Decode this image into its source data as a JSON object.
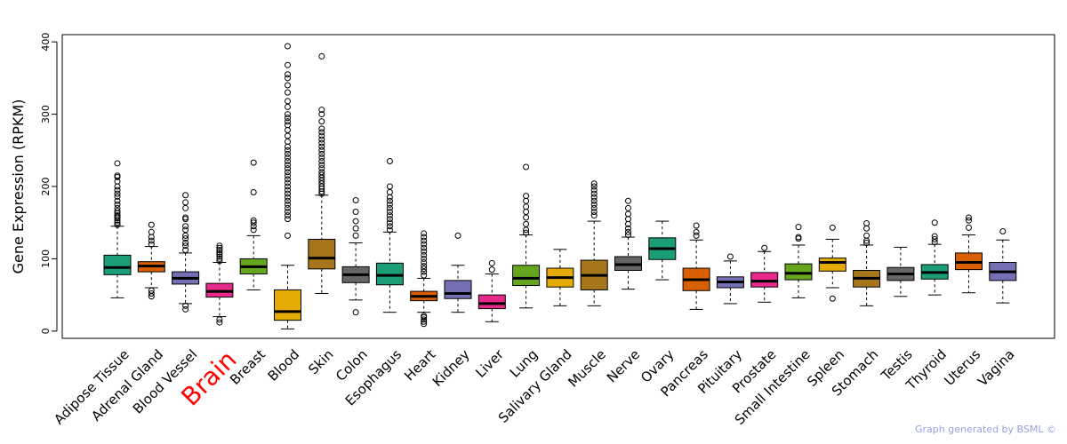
{
  "chart_data": {
    "type": "box",
    "ylabel": "Gene Expression (RPKM)",
    "xlabel": "",
    "ylim": [
      -10,
      410
    ],
    "yticks": [
      0,
      100,
      200,
      300,
      400
    ],
    "highlight_category": "Brain",
    "highlight_color": "#ff0000",
    "credit": "Graph generated by BSML ©",
    "series": [
      {
        "name": "Adipose Tissue",
        "color": "#1b9e77",
        "whisker_low": 46,
        "q1": 78,
        "median": 88,
        "q3": 105,
        "whisker_high": 145,
        "outliers": [
          147,
          150,
          153,
          156,
          158,
          160,
          163,
          166,
          170,
          175,
          180,
          186,
          190,
          195,
          200,
          207,
          213,
          215,
          232
        ]
      },
      {
        "name": "Adrenal Gland",
        "color": "#d95f02",
        "whisker_low": 60,
        "q1": 82,
        "median": 90,
        "q3": 96,
        "whisker_high": 117,
        "outliers": [
          48,
          52,
          56,
          120,
          125,
          130,
          137,
          147
        ]
      },
      {
        "name": "Blood Vessel",
        "color": "#7570b3",
        "whisker_low": 38,
        "q1": 65,
        "median": 73,
        "q3": 82,
        "whisker_high": 108,
        "outliers": [
          30,
          35,
          112,
          118,
          122,
          128,
          132,
          140,
          145,
          155,
          157,
          170,
          178,
          188
        ]
      },
      {
        "name": "Brain",
        "color": "#e7298a",
        "whisker_low": 20,
        "q1": 47,
        "median": 55,
        "q3": 66,
        "whisker_high": 95,
        "outliers": [
          12,
          16,
          97,
          100,
          103,
          106,
          109,
          112,
          115,
          118
        ]
      },
      {
        "name": "Breast",
        "color": "#66a61e",
        "whisker_low": 57,
        "q1": 79,
        "median": 89,
        "q3": 100,
        "whisker_high": 132,
        "outliers": [
          140,
          145,
          150,
          153,
          192,
          233
        ]
      },
      {
        "name": "Blood",
        "color": "#e6ab02",
        "whisker_low": 3,
        "q1": 15,
        "median": 27,
        "q3": 57,
        "whisker_high": 91,
        "outliers": [
          132,
          155,
          160,
          165,
          170,
          175,
          180,
          185,
          190,
          195,
          200,
          205,
          210,
          215,
          220,
          225,
          230,
          235,
          240,
          245,
          250,
          255,
          262,
          270,
          278,
          285,
          290,
          295,
          300,
          310,
          318,
          330,
          340,
          350,
          355,
          368,
          394
        ]
      },
      {
        "name": "Skin",
        "color": "#a6761d",
        "whisker_low": 52,
        "q1": 86,
        "median": 101,
        "q3": 127,
        "whisker_high": 188,
        "outliers": [
          190,
          193,
          197,
          200,
          204,
          208,
          212,
          216,
          220,
          225,
          230,
          235,
          240,
          245,
          250,
          255,
          260,
          265,
          270,
          275,
          280,
          290,
          300,
          306,
          380
        ]
      },
      {
        "name": "Colon",
        "color": "#666666",
        "whisker_low": 43,
        "q1": 67,
        "median": 78,
        "q3": 89,
        "whisker_high": 122,
        "outliers": [
          26,
          132,
          142,
          152,
          165,
          181
        ]
      },
      {
        "name": "Esophagus",
        "color": "#1b9e77",
        "whisker_low": 26,
        "q1": 64,
        "median": 77,
        "q3": 94,
        "whisker_high": 137,
        "outliers": [
          140,
          145,
          150,
          155,
          160,
          165,
          170,
          175,
          180,
          185,
          192,
          200,
          235
        ]
      },
      {
        "name": "Heart",
        "color": "#d95f02",
        "whisker_low": 26,
        "q1": 42,
        "median": 48,
        "q3": 55,
        "whisker_high": 73,
        "outliers": [
          10,
          13,
          16,
          19,
          21,
          77,
          82,
          86,
          90,
          95,
          100,
          105,
          110,
          115,
          120,
          125,
          130,
          135
        ]
      },
      {
        "name": "Kidney",
        "color": "#7570b3",
        "whisker_low": 26,
        "q1": 45,
        "median": 52,
        "q3": 70,
        "whisker_high": 91,
        "outliers": [
          132
        ]
      },
      {
        "name": "Liver",
        "color": "#e7298a",
        "whisker_low": 13,
        "q1": 31,
        "median": 38,
        "q3": 50,
        "whisker_high": 79,
        "outliers": [
          85,
          94
        ]
      },
      {
        "name": "Lung",
        "color": "#66a61e",
        "whisker_low": 32,
        "q1": 63,
        "median": 73,
        "q3": 91,
        "whisker_high": 133,
        "outliers": [
          136,
          140,
          148,
          157,
          165,
          172,
          180,
          187,
          227
        ]
      },
      {
        "name": "Salivary Gland",
        "color": "#e6ab02",
        "whisker_low": 35,
        "q1": 61,
        "median": 74,
        "q3": 87,
        "whisker_high": 113,
        "outliers": []
      },
      {
        "name": "Muscle",
        "color": "#a6761d",
        "whisker_low": 35,
        "q1": 57,
        "median": 77,
        "q3": 98,
        "whisker_high": 152,
        "outliers": [
          160,
          165,
          170,
          175,
          180,
          185,
          190,
          195,
          200,
          204
        ]
      },
      {
        "name": "Nerve",
        "color": "#666666",
        "whisker_low": 58,
        "q1": 84,
        "median": 92,
        "q3": 103,
        "whisker_high": 130,
        "outliers": [
          133,
          137,
          142,
          148,
          155,
          162,
          170,
          180
        ]
      },
      {
        "name": "Ovary",
        "color": "#1b9e77",
        "whisker_low": 71,
        "q1": 99,
        "median": 114,
        "q3": 129,
        "whisker_high": 152,
        "outliers": []
      },
      {
        "name": "Pancreas",
        "color": "#d95f02",
        "whisker_low": 30,
        "q1": 56,
        "median": 71,
        "q3": 87,
        "whisker_high": 126,
        "outliers": [
          132,
          137,
          146
        ]
      },
      {
        "name": "Pituitary",
        "color": "#7570b3",
        "whisker_low": 38,
        "q1": 60,
        "median": 68,
        "q3": 75,
        "whisker_high": 97,
        "outliers": [
          103
        ]
      },
      {
        "name": "Prostate",
        "color": "#e7298a",
        "whisker_low": 40,
        "q1": 61,
        "median": 69,
        "q3": 81,
        "whisker_high": 110,
        "outliers": [
          115
        ]
      },
      {
        "name": "Small Intestine",
        "color": "#66a61e",
        "whisker_low": 46,
        "q1": 71,
        "median": 80,
        "q3": 93,
        "whisker_high": 119,
        "outliers": [
          128,
          130,
          144
        ]
      },
      {
        "name": "Spleen",
        "color": "#e6ab02",
        "whisker_low": 60,
        "q1": 83,
        "median": 95,
        "q3": 101,
        "whisker_high": 127,
        "outliers": [
          45,
          143
        ]
      },
      {
        "name": "Stomach",
        "color": "#a6761d",
        "whisker_low": 35,
        "q1": 61,
        "median": 73,
        "q3": 84,
        "whisker_high": 119,
        "outliers": [
          122,
          125,
          132,
          142,
          149
        ]
      },
      {
        "name": "Testis",
        "color": "#666666",
        "whisker_low": 48,
        "q1": 70,
        "median": 79,
        "q3": 88,
        "whisker_high": 116,
        "outliers": []
      },
      {
        "name": "Thyroid",
        "color": "#1b9e77",
        "whisker_low": 50,
        "q1": 72,
        "median": 81,
        "q3": 92,
        "whisker_high": 120,
        "outliers": [
          123,
          127,
          131,
          150
        ]
      },
      {
        "name": "Uterus",
        "color": "#d95f02",
        "whisker_low": 53,
        "q1": 85,
        "median": 95,
        "q3": 108,
        "whisker_high": 133,
        "outliers": [
          143,
          153,
          157
        ]
      },
      {
        "name": "Vagina",
        "color": "#7570b3",
        "whisker_low": 39,
        "q1": 70,
        "median": 82,
        "q3": 95,
        "whisker_high": 126,
        "outliers": [
          138
        ]
      }
    ]
  }
}
